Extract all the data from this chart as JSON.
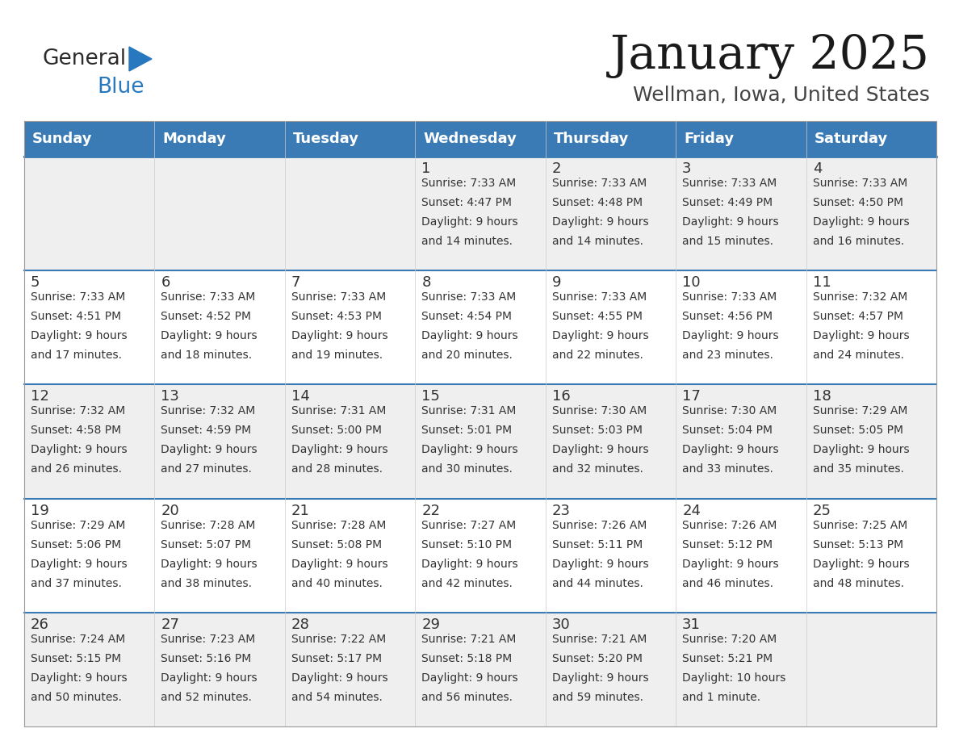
{
  "title": "January 2025",
  "subtitle": "Wellman, Iowa, United States",
  "header_bg": "#3a7ab5",
  "header_text_color": "#ffffff",
  "cell_bg_odd": "#efefef",
  "cell_bg_even": "#ffffff",
  "row_sep_color": "#3a7ab5",
  "col_sep_color": "#cccccc",
  "day_names": [
    "Sunday",
    "Monday",
    "Tuesday",
    "Wednesday",
    "Thursday",
    "Friday",
    "Saturday"
  ],
  "days": [
    {
      "day": 1,
      "col": 3,
      "row": 0,
      "sunrise": "7:33 AM",
      "sunset": "4:47 PM",
      "daylight_h": "9 hours",
      "daylight_m": "and 14 minutes."
    },
    {
      "day": 2,
      "col": 4,
      "row": 0,
      "sunrise": "7:33 AM",
      "sunset": "4:48 PM",
      "daylight_h": "9 hours",
      "daylight_m": "and 14 minutes."
    },
    {
      "day": 3,
      "col": 5,
      "row": 0,
      "sunrise": "7:33 AM",
      "sunset": "4:49 PM",
      "daylight_h": "9 hours",
      "daylight_m": "and 15 minutes."
    },
    {
      "day": 4,
      "col": 6,
      "row": 0,
      "sunrise": "7:33 AM",
      "sunset": "4:50 PM",
      "daylight_h": "9 hours",
      "daylight_m": "and 16 minutes."
    },
    {
      "day": 5,
      "col": 0,
      "row": 1,
      "sunrise": "7:33 AM",
      "sunset": "4:51 PM",
      "daylight_h": "9 hours",
      "daylight_m": "and 17 minutes."
    },
    {
      "day": 6,
      "col": 1,
      "row": 1,
      "sunrise": "7:33 AM",
      "sunset": "4:52 PM",
      "daylight_h": "9 hours",
      "daylight_m": "and 18 minutes."
    },
    {
      "day": 7,
      "col": 2,
      "row": 1,
      "sunrise": "7:33 AM",
      "sunset": "4:53 PM",
      "daylight_h": "9 hours",
      "daylight_m": "and 19 minutes."
    },
    {
      "day": 8,
      "col": 3,
      "row": 1,
      "sunrise": "7:33 AM",
      "sunset": "4:54 PM",
      "daylight_h": "9 hours",
      "daylight_m": "and 20 minutes."
    },
    {
      "day": 9,
      "col": 4,
      "row": 1,
      "sunrise": "7:33 AM",
      "sunset": "4:55 PM",
      "daylight_h": "9 hours",
      "daylight_m": "and 22 minutes."
    },
    {
      "day": 10,
      "col": 5,
      "row": 1,
      "sunrise": "7:33 AM",
      "sunset": "4:56 PM",
      "daylight_h": "9 hours",
      "daylight_m": "and 23 minutes."
    },
    {
      "day": 11,
      "col": 6,
      "row": 1,
      "sunrise": "7:32 AM",
      "sunset": "4:57 PM",
      "daylight_h": "9 hours",
      "daylight_m": "and 24 minutes."
    },
    {
      "day": 12,
      "col": 0,
      "row": 2,
      "sunrise": "7:32 AM",
      "sunset": "4:58 PM",
      "daylight_h": "9 hours",
      "daylight_m": "and 26 minutes."
    },
    {
      "day": 13,
      "col": 1,
      "row": 2,
      "sunrise": "7:32 AM",
      "sunset": "4:59 PM",
      "daylight_h": "9 hours",
      "daylight_m": "and 27 minutes."
    },
    {
      "day": 14,
      "col": 2,
      "row": 2,
      "sunrise": "7:31 AM",
      "sunset": "5:00 PM",
      "daylight_h": "9 hours",
      "daylight_m": "and 28 minutes."
    },
    {
      "day": 15,
      "col": 3,
      "row": 2,
      "sunrise": "7:31 AM",
      "sunset": "5:01 PM",
      "daylight_h": "9 hours",
      "daylight_m": "and 30 minutes."
    },
    {
      "day": 16,
      "col": 4,
      "row": 2,
      "sunrise": "7:30 AM",
      "sunset": "5:03 PM",
      "daylight_h": "9 hours",
      "daylight_m": "and 32 minutes."
    },
    {
      "day": 17,
      "col": 5,
      "row": 2,
      "sunrise": "7:30 AM",
      "sunset": "5:04 PM",
      "daylight_h": "9 hours",
      "daylight_m": "and 33 minutes."
    },
    {
      "day": 18,
      "col": 6,
      "row": 2,
      "sunrise": "7:29 AM",
      "sunset": "5:05 PM",
      "daylight_h": "9 hours",
      "daylight_m": "and 35 minutes."
    },
    {
      "day": 19,
      "col": 0,
      "row": 3,
      "sunrise": "7:29 AM",
      "sunset": "5:06 PM",
      "daylight_h": "9 hours",
      "daylight_m": "and 37 minutes."
    },
    {
      "day": 20,
      "col": 1,
      "row": 3,
      "sunrise": "7:28 AM",
      "sunset": "5:07 PM",
      "daylight_h": "9 hours",
      "daylight_m": "and 38 minutes."
    },
    {
      "day": 21,
      "col": 2,
      "row": 3,
      "sunrise": "7:28 AM",
      "sunset": "5:08 PM",
      "daylight_h": "9 hours",
      "daylight_m": "and 40 minutes."
    },
    {
      "day": 22,
      "col": 3,
      "row": 3,
      "sunrise": "7:27 AM",
      "sunset": "5:10 PM",
      "daylight_h": "9 hours",
      "daylight_m": "and 42 minutes."
    },
    {
      "day": 23,
      "col": 4,
      "row": 3,
      "sunrise": "7:26 AM",
      "sunset": "5:11 PM",
      "daylight_h": "9 hours",
      "daylight_m": "and 44 minutes."
    },
    {
      "day": 24,
      "col": 5,
      "row": 3,
      "sunrise": "7:26 AM",
      "sunset": "5:12 PM",
      "daylight_h": "9 hours",
      "daylight_m": "and 46 minutes."
    },
    {
      "day": 25,
      "col": 6,
      "row": 3,
      "sunrise": "7:25 AM",
      "sunset": "5:13 PM",
      "daylight_h": "9 hours",
      "daylight_m": "and 48 minutes."
    },
    {
      "day": 26,
      "col": 0,
      "row": 4,
      "sunrise": "7:24 AM",
      "sunset": "5:15 PM",
      "daylight_h": "9 hours",
      "daylight_m": "and 50 minutes."
    },
    {
      "day": 27,
      "col": 1,
      "row": 4,
      "sunrise": "7:23 AM",
      "sunset": "5:16 PM",
      "daylight_h": "9 hours",
      "daylight_m": "and 52 minutes."
    },
    {
      "day": 28,
      "col": 2,
      "row": 4,
      "sunrise": "7:22 AM",
      "sunset": "5:17 PM",
      "daylight_h": "9 hours",
      "daylight_m": "and 54 minutes."
    },
    {
      "day": 29,
      "col": 3,
      "row": 4,
      "sunrise": "7:21 AM",
      "sunset": "5:18 PM",
      "daylight_h": "9 hours",
      "daylight_m": "and 56 minutes."
    },
    {
      "day": 30,
      "col": 4,
      "row": 4,
      "sunrise": "7:21 AM",
      "sunset": "5:20 PM",
      "daylight_h": "9 hours",
      "daylight_m": "and 59 minutes."
    },
    {
      "day": 31,
      "col": 5,
      "row": 4,
      "sunrise": "7:20 AM",
      "sunset": "5:21 PM",
      "daylight_h": "10 hours",
      "daylight_m": "and 1 minute."
    }
  ],
  "num_rows": 5,
  "logo_general_color": "#2b2b2b",
  "logo_blue_color": "#2878c0",
  "text_color": "#333333",
  "title_fontsize": 42,
  "subtitle_fontsize": 18,
  "header_fontsize": 13,
  "day_num_fontsize": 13,
  "cell_fontsize": 10
}
